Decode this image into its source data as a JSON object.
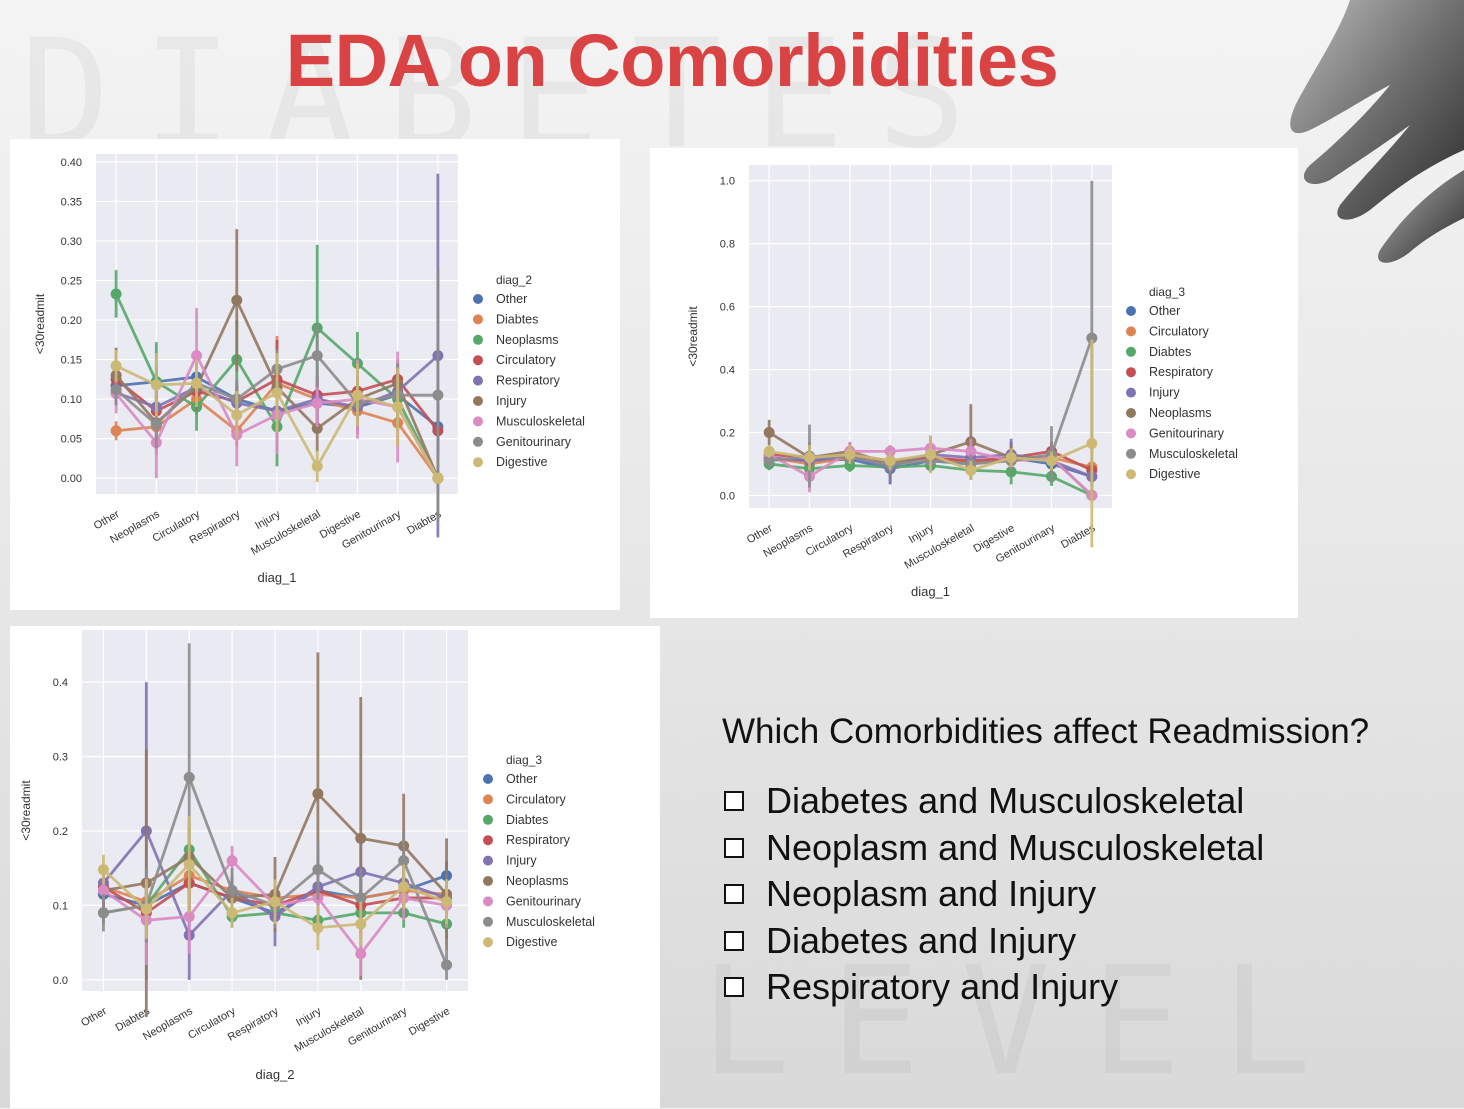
{
  "slide": {
    "title": "EDA on Comorbidities",
    "question": "Which Comorbidities affect Readmission?",
    "options": [
      "Diabetes and Musculoskeletal",
      "Neoplasm and Musculoskeletal",
      "Neoplasm and Injury",
      "Diabetes and Injury",
      "Respiratory and Injury"
    ]
  },
  "chart_data": [
    {
      "type": "line",
      "xlabel": "diag_1",
      "ylabel": "<30readmit",
      "ylim": [
        -0.02,
        0.41
      ],
      "yticks": [
        0.0,
        0.05,
        0.1,
        0.15,
        0.2,
        0.25,
        0.3,
        0.35,
        0.4
      ],
      "ytick_labels": [
        "0.00",
        "0.05",
        "0.10",
        "0.15",
        "0.20",
        "0.25",
        "0.30",
        "0.35",
        "0.40"
      ],
      "categories": [
        "Other",
        "Neoplasms",
        "Circulatory",
        "Respiratory",
        "Injury",
        "Musculoskeletal",
        "Digestive",
        "Genitourinary",
        "Diabtes"
      ],
      "legend_title": "diag_2",
      "legend_position": "right",
      "grid": true,
      "series": [
        {
          "name": "Other",
          "color": "#4c72b0",
          "values": [
            0.117,
            0.122,
            0.128,
            0.1,
            0.085,
            0.095,
            0.09,
            0.105,
            0.065
          ],
          "err": [
            0.015,
            0.02,
            0.012,
            0.02,
            0.02,
            0.025,
            0.02,
            0.03,
            0.03
          ]
        },
        {
          "name": "Diabtes",
          "color": "#dd8452",
          "values": [
            0.06,
            0.065,
            0.1,
            0.06,
            0.12,
            0.1,
            0.085,
            0.07,
            0.0
          ],
          "err": [
            0.012,
            0.03,
            0.02,
            0.02,
            0.06,
            0.03,
            0.03,
            0.03,
            0.0
          ]
        },
        {
          "name": "Neoplasms",
          "color": "#55a868",
          "values": [
            0.233,
            0.122,
            0.09,
            0.15,
            0.065,
            0.19,
            0.145,
            0.1,
            0.0
          ],
          "err": [
            0.03,
            0.05,
            0.03,
            0.05,
            0.05,
            0.105,
            0.04,
            0.04,
            0.0
          ]
        },
        {
          "name": "Circulatory",
          "color": "#c44e52",
          "values": [
            0.125,
            0.085,
            0.11,
            0.097,
            0.125,
            0.105,
            0.11,
            0.125,
            0.06
          ],
          "err": [
            0.015,
            0.02,
            0.015,
            0.02,
            0.05,
            0.02,
            0.02,
            0.02,
            0.03
          ]
        },
        {
          "name": "Respiratory",
          "color": "#8172b2",
          "values": [
            0.108,
            0.09,
            0.115,
            0.095,
            0.085,
            0.1,
            0.09,
            0.11,
            0.155
          ],
          "err": [
            0.015,
            0.03,
            0.015,
            0.02,
            0.03,
            0.03,
            0.03,
            0.02,
            0.23
          ]
        },
        {
          "name": "Injury",
          "color": "#937860",
          "values": [
            0.13,
            0.07,
            0.115,
            0.225,
            0.115,
            0.063,
            0.1,
            0.12,
            0.0
          ],
          "err": [
            0.035,
            0.04,
            0.03,
            0.09,
            0.04,
            0.03,
            0.03,
            0.03,
            0.0
          ]
        },
        {
          "name": "Musculoskeletal",
          "color": "#da8bc3",
          "values": [
            0.107,
            0.045,
            0.155,
            0.055,
            0.08,
            0.095,
            0.1,
            0.09,
            0.0
          ],
          "err": [
            0.025,
            0.045,
            0.06,
            0.04,
            0.05,
            0.03,
            0.05,
            0.07,
            0.0
          ]
        },
        {
          "name": "Genitourinary",
          "color": "#8c8c8c",
          "values": [
            0.112,
            0.068,
            0.12,
            0.1,
            0.138,
            0.155,
            0.095,
            0.105,
            0.105
          ],
          "err": [
            0.02,
            0.03,
            0.025,
            0.025,
            0.025,
            0.04,
            0.03,
            0.04,
            0.16
          ]
        },
        {
          "name": "Digestive",
          "color": "#ccb974",
          "values": [
            0.142,
            0.118,
            0.12,
            0.08,
            0.108,
            0.015,
            0.105,
            0.09,
            0.0
          ],
          "err": [
            0.02,
            0.04,
            0.03,
            0.03,
            0.05,
            0.02,
            0.04,
            0.05,
            0.0
          ]
        }
      ]
    },
    {
      "type": "line",
      "xlabel": "diag_1",
      "ylabel": "<30readmit",
      "ylim": [
        -0.04,
        1.05
      ],
      "yticks": [
        0.0,
        0.2,
        0.4,
        0.6,
        0.8,
        1.0
      ],
      "ytick_labels": [
        "0.0",
        "0.2",
        "0.4",
        "0.6",
        "0.8",
        "1.0"
      ],
      "categories": [
        "Other",
        "Neoplasms",
        "Circulatory",
        "Respiratory",
        "Injury",
        "Musculoskeletal",
        "Digestive",
        "Genitourinary",
        "Diabtes"
      ],
      "legend_title": "diag_3",
      "legend_position": "right",
      "grid": true,
      "series": [
        {
          "name": "Other",
          "color": "#4c72b0",
          "values": [
            0.115,
            0.11,
            0.115,
            0.085,
            0.11,
            0.1,
            0.12,
            0.1,
            0.06
          ],
          "err": [
            0.02,
            0.04,
            0.02,
            0.05,
            0.03,
            0.03,
            0.05,
            0.04,
            0.02
          ]
        },
        {
          "name": "Circulatory",
          "color": "#dd8452",
          "values": [
            0.12,
            0.1,
            0.12,
            0.105,
            0.12,
            0.105,
            0.11,
            0.12,
            0.09
          ],
          "err": [
            0.02,
            0.03,
            0.02,
            0.03,
            0.03,
            0.03,
            0.03,
            0.03,
            0.02
          ]
        },
        {
          "name": "Diabtes",
          "color": "#55a868",
          "values": [
            0.1,
            0.085,
            0.095,
            0.09,
            0.095,
            0.08,
            0.075,
            0.06,
            0.0
          ],
          "err": [
            0.02,
            0.03,
            0.02,
            0.03,
            0.02,
            0.03,
            0.04,
            0.03,
            0.0
          ]
        },
        {
          "name": "Respiratory",
          "color": "#c44e52",
          "values": [
            0.13,
            0.12,
            0.13,
            0.11,
            0.12,
            0.11,
            0.12,
            0.14,
            0.08
          ],
          "err": [
            0.02,
            0.03,
            0.02,
            0.03,
            0.03,
            0.03,
            0.03,
            0.03,
            0.03
          ]
        },
        {
          "name": "Injury",
          "color": "#8172b2",
          "values": [
            0.12,
            0.11,
            0.125,
            0.09,
            0.13,
            0.12,
            0.13,
            0.11,
            0.06
          ],
          "err": [
            0.02,
            0.03,
            0.02,
            0.05,
            0.03,
            0.03,
            0.05,
            0.03,
            0.03
          ]
        },
        {
          "name": "Neoplasms",
          "color": "#937860",
          "values": [
            0.2,
            0.12,
            0.14,
            0.1,
            0.13,
            0.17,
            0.12,
            0.12,
            0.0
          ],
          "err": [
            0.04,
            0.05,
            0.03,
            0.04,
            0.05,
            0.12,
            0.04,
            0.04,
            0.0
          ]
        },
        {
          "name": "Genitourinary",
          "color": "#da8bc3",
          "values": [
            0.13,
            0.06,
            0.14,
            0.14,
            0.15,
            0.14,
            0.11,
            0.12,
            0.0
          ],
          "err": [
            0.02,
            0.05,
            0.03,
            0.02,
            0.04,
            0.04,
            0.03,
            0.04,
            0.0
          ]
        },
        {
          "name": "Musculoskeletal",
          "color": "#8c8c8c",
          "values": [
            0.11,
            0.125,
            0.12,
            0.1,
            0.11,
            0.1,
            0.11,
            0.13,
            0.5
          ],
          "err": [
            0.02,
            0.1,
            0.02,
            0.03,
            0.03,
            0.03,
            0.03,
            0.09,
            0.5
          ]
        },
        {
          "name": "Digestive",
          "color": "#ccb974",
          "values": [
            0.14,
            0.12,
            0.13,
            0.11,
            0.13,
            0.08,
            0.12,
            0.11,
            0.165
          ],
          "err": [
            0.02,
            0.04,
            0.03,
            0.03,
            0.06,
            0.03,
            0.03,
            0.03,
            0.33
          ]
        }
      ]
    },
    {
      "type": "line",
      "xlabel": "diag_2",
      "ylabel": "<30readmit",
      "ylim": [
        -0.015,
        0.47
      ],
      "yticks": [
        0.0,
        0.1,
        0.2,
        0.3,
        0.4
      ],
      "ytick_labels": [
        "0.0",
        "0.1",
        "0.2",
        "0.3",
        "0.4"
      ],
      "categories": [
        "Other",
        "Diabtes",
        "Neoplasms",
        "Circulatory",
        "Respiratory",
        "Injury",
        "Musculoskeletal",
        "Genitourinary",
        "Digestive"
      ],
      "legend_title": "diag_3",
      "legend_position": "right",
      "grid": true,
      "series": [
        {
          "name": "Other",
          "color": "#4c72b0",
          "values": [
            0.115,
            0.1,
            0.13,
            0.11,
            0.09,
            0.12,
            0.11,
            0.12,
            0.14
          ],
          "err": [
            0.015,
            0.025,
            0.04,
            0.015,
            0.02,
            0.03,
            0.03,
            0.02,
            0.02
          ]
        },
        {
          "name": "Circulatory",
          "color": "#dd8452",
          "values": [
            0.125,
            0.105,
            0.14,
            0.12,
            0.11,
            0.115,
            0.11,
            0.12,
            0.115
          ],
          "err": [
            0.015,
            0.02,
            0.03,
            0.015,
            0.02,
            0.02,
            0.02,
            0.02,
            0.02
          ]
        },
        {
          "name": "Diabtes",
          "color": "#55a868",
          "values": [
            0.09,
            0.1,
            0.175,
            0.085,
            0.09,
            0.08,
            0.09,
            0.09,
            0.075
          ],
          "err": [
            0.015,
            0.02,
            0.04,
            0.015,
            0.02,
            0.02,
            0.03,
            0.02,
            0.02
          ]
        },
        {
          "name": "Respiratory",
          "color": "#c44e52",
          "values": [
            0.125,
            0.09,
            0.13,
            0.11,
            0.1,
            0.12,
            0.1,
            0.11,
            0.11
          ],
          "err": [
            0.015,
            0.02,
            0.03,
            0.015,
            0.02,
            0.03,
            0.02,
            0.02,
            0.02
          ]
        },
        {
          "name": "Injury",
          "color": "#8172b2",
          "values": [
            0.13,
            0.2,
            0.06,
            0.12,
            0.085,
            0.125,
            0.145,
            0.13,
            0.11
          ],
          "err": [
            0.02,
            0.2,
            0.06,
            0.02,
            0.04,
            0.05,
            0.05,
            0.04,
            0.03
          ]
        },
        {
          "name": "Neoplasms",
          "color": "#937860",
          "values": [
            0.12,
            0.13,
            0.165,
            0.11,
            0.115,
            0.25,
            0.19,
            0.18,
            0.115
          ],
          "err": [
            0.03,
            0.18,
            0.04,
            0.03,
            0.05,
            0.19,
            0.19,
            0.07,
            0.075
          ]
        },
        {
          "name": "Genitourinary",
          "color": "#da8bc3",
          "values": [
            0.12,
            0.08,
            0.085,
            0.16,
            0.1,
            0.11,
            0.035,
            0.11,
            0.1
          ],
          "err": [
            0.02,
            0.06,
            0.05,
            0.02,
            0.03,
            0.04,
            0.03,
            0.03,
            0.03
          ]
        },
        {
          "name": "Musculoskeletal",
          "color": "#8c8c8c",
          "values": [
            0.09,
            0.1,
            0.272,
            0.12,
            0.1,
            0.148,
            0.11,
            0.16,
            0.02
          ],
          "err": [
            0.025,
            0.05,
            0.18,
            0.03,
            0.03,
            0.04,
            0.04,
            0.04,
            0.02
          ]
        },
        {
          "name": "Digestive",
          "color": "#ccb974",
          "values": [
            0.148,
            0.095,
            0.155,
            0.09,
            0.105,
            0.07,
            0.075,
            0.125,
            0.105
          ],
          "err": [
            0.02,
            0.04,
            0.065,
            0.02,
            0.03,
            0.03,
            0.03,
            0.03,
            0.03
          ]
        }
      ]
    }
  ]
}
